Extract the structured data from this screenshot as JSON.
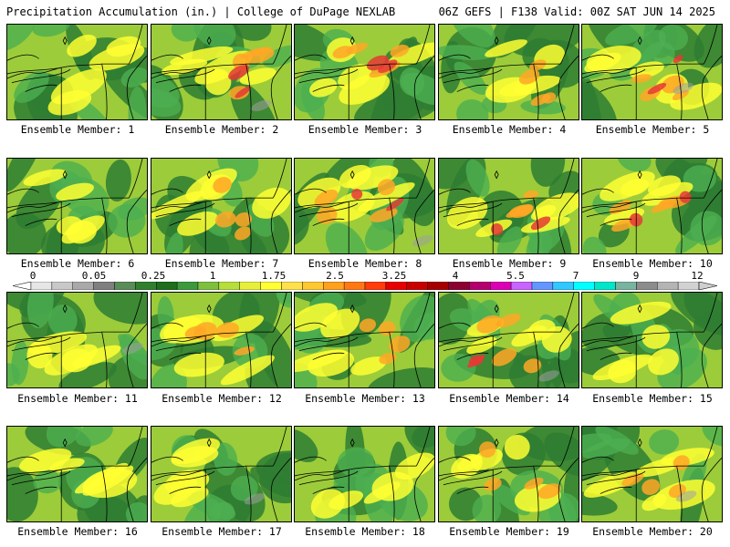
{
  "header": {
    "left_title": "Precipitation Accumulation (in.) | College of DuPage NEXLAB",
    "right_title": "06Z GEFS | F138 Valid: 00Z SAT JUN 14 2025"
  },
  "colorbar": {
    "tick_labels": [
      "0",
      "0.05",
      "0.25",
      "1",
      "1.75",
      "2.5",
      "3.25",
      "4",
      "5.5",
      "7",
      "9",
      "12"
    ],
    "colors": [
      "#e6e6e6",
      "#c8c8c8",
      "#a9a9a9",
      "#7f7f7f",
      "#5a8c5a",
      "#2f7f2f",
      "#1e6e1e",
      "#3c9a3c",
      "#7fbf3f",
      "#b7de3a",
      "#e6f03c",
      "#ffff33",
      "#ffe14d",
      "#ffc832",
      "#ffa01e",
      "#ff7814",
      "#ff3c0a",
      "#e60000",
      "#c80000",
      "#a50000",
      "#8c0032",
      "#b4006e",
      "#dc00b4",
      "#c864ff",
      "#6496ff",
      "#32c8ff",
      "#00ffff",
      "#00e6c8",
      "#78b4a0",
      "#8c8c8c",
      "#b4b4b4",
      "#d2d2d2"
    ],
    "arrow_colors": {
      "low": "#ffffff",
      "high": "#cfcfcf"
    }
  },
  "panels": [
    {
      "label": "Ensemble Member: 1",
      "intensity": 0.25
    },
    {
      "label": "Ensemble Member: 2",
      "intensity": 0.85
    },
    {
      "label": "Ensemble Member: 3",
      "intensity": 0.8
    },
    {
      "label": "Ensemble Member: 4",
      "intensity": 0.35
    },
    {
      "label": "Ensemble Member: 5",
      "intensity": 0.55
    },
    {
      "label": "Ensemble Member: 6",
      "intensity": 0.25
    },
    {
      "label": "Ensemble Member: 7",
      "intensity": 0.35
    },
    {
      "label": "Ensemble Member: 8",
      "intensity": 0.75
    },
    {
      "label": "Ensemble Member: 9",
      "intensity": 0.6
    },
    {
      "label": "Ensemble Member: 10",
      "intensity": 0.8
    },
    {
      "label": "Ensemble Member: 11",
      "intensity": 0.15
    },
    {
      "label": "Ensemble Member: 12",
      "intensity": 0.45
    },
    {
      "label": "Ensemble Member: 13",
      "intensity": 0.35
    },
    {
      "label": "Ensemble Member: 14",
      "intensity": 0.55
    },
    {
      "label": "Ensemble Member: 15",
      "intensity": 0.15
    },
    {
      "label": "Ensemble Member: 16",
      "intensity": 0.25
    },
    {
      "label": "Ensemble Member: 17",
      "intensity": 0.2
    },
    {
      "label": "Ensemble Member: 18",
      "intensity": 0.3
    },
    {
      "label": "Ensemble Member: 19",
      "intensity": 0.5
    },
    {
      "label": "Ensemble Member: 20",
      "intensity": 0.45
    }
  ],
  "map_colors": {
    "dark_green": "#2e7d32",
    "mid_green": "#4caf50",
    "light_green": "#9ccc3a",
    "yellow": "#ffff33",
    "orange": "#ffa726",
    "red": "#e53935",
    "gray": "#9e9e9e",
    "outline": "#000000"
  }
}
